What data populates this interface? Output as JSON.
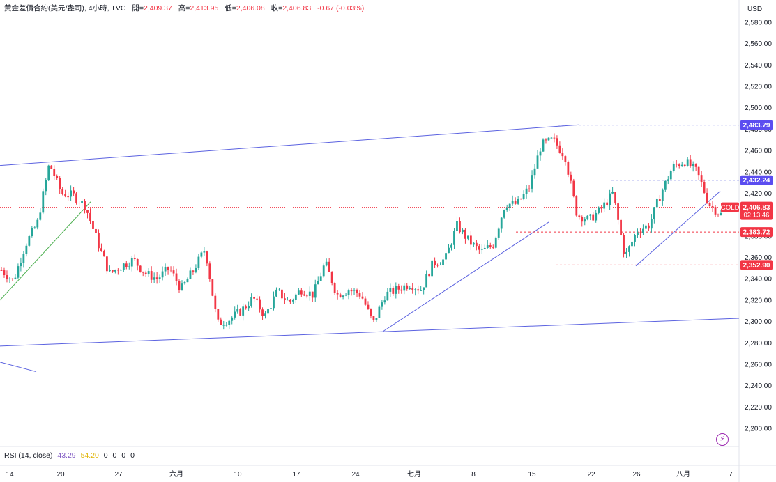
{
  "legend": {
    "title": "黃金差價合約(美元/盎司), 4小時, TVC",
    "open_label": "開=",
    "open_value": "2,409.37",
    "high_label": "高=",
    "high_value": "2,413.95",
    "low_label": "低=",
    "low_value": "2,406.08",
    "close_label": "收=",
    "close_value": "2,406.83",
    "change": "-0.67 (-0.03%)"
  },
  "currency": "USD",
  "rsi": {
    "label": "RSI (14, close)",
    "value1": "43.29",
    "value2": "54.20",
    "zeros": [
      "0",
      "0",
      "0",
      "0"
    ]
  },
  "colors": {
    "up": "#26a69a",
    "down": "#f23645",
    "trend": "#5b62e0",
    "green_trend": "#4caf50",
    "price_tag": "#f23645",
    "level_tag_blue": "#5b4df0"
  },
  "chart_data": {
    "type": "candlestick",
    "symbol": "GOLD",
    "ylim": [
      2190,
      2590
    ],
    "y_ticks": [
      2580,
      2560,
      2540,
      2520,
      2500,
      2480,
      2460,
      2440,
      2420,
      2400,
      2380,
      2360,
      2340,
      2320,
      2300,
      2280,
      2260,
      2240,
      2220,
      2200
    ],
    "y_tick_labels": [
      "2,580.00",
      "2,560.00",
      "2,540.00",
      "2,520.00",
      "2,500.00",
      "2,480.00",
      "2,460.00",
      "2,440.00",
      "2,420.00",
      "2,400.00",
      "2,380.00",
      "2,360.00",
      "2,340.00",
      "2,320.00",
      "2,300.00",
      "2,280.00",
      "2,260.00",
      "2,240.00",
      "2,220.00",
      "2,200.00"
    ],
    "x_tick_labels": [
      "14",
      "20",
      "27",
      "六月",
      "10",
      "17",
      "24",
      "七月",
      "8",
      "15",
      "22",
      "26",
      "八月",
      "7"
    ],
    "close_path": [
      [
        "14",
        2348
      ],
      [
        "16",
        2338
      ],
      [
        "18",
        2372
      ],
      [
        "19",
        2392
      ],
      [
        "20",
        2448
      ],
      [
        "21",
        2420
      ],
      [
        "22",
        2418
      ],
      [
        "23",
        2408
      ],
      [
        "24",
        2375
      ],
      [
        "27",
        2345
      ],
      [
        "28",
        2352
      ],
      [
        "29",
        2358
      ],
      [
        "30",
        2345
      ],
      [
        "31",
        2340
      ],
      [
        "六月",
        2350
      ],
      [
        "4",
        2330
      ],
      [
        "5",
        2348
      ],
      [
        "6",
        2368
      ],
      [
        "7",
        2298
      ],
      [
        "10",
        2302
      ],
      [
        "11",
        2310
      ],
      [
        "12",
        2322
      ],
      [
        "13",
        2305
      ],
      [
        "14b",
        2328
      ],
      [
        "17",
        2318
      ],
      [
        "18",
        2330
      ],
      [
        "19",
        2325
      ],
      [
        "20",
        2355
      ],
      [
        "21",
        2325
      ],
      [
        "24",
        2330
      ],
      [
        "25",
        2325
      ],
      [
        "26",
        2298
      ],
      [
        "27",
        2325
      ],
      [
        "28",
        2330
      ],
      [
        "七月",
        2335
      ],
      [
        "2",
        2330
      ],
      [
        "3",
        2355
      ],
      [
        "4",
        2358
      ],
      [
        "5",
        2390
      ],
      [
        "8",
        2375
      ],
      [
        "9",
        2365
      ],
      [
        "10",
        2372
      ],
      [
        "11",
        2410
      ],
      [
        "12",
        2410
      ],
      [
        "15",
        2425
      ],
      [
        "16",
        2465
      ],
      [
        "17",
        2470
      ],
      [
        "18",
        2455
      ],
      [
        "19",
        2400
      ],
      [
        "22",
        2395
      ],
      [
        "23",
        2405
      ],
      [
        "24",
        2420
      ],
      [
        "25",
        2360
      ],
      [
        "26",
        2385
      ],
      [
        "29",
        2390
      ],
      [
        "30",
        2420
      ],
      [
        "31",
        2445
      ],
      [
        "八月",
        2450
      ],
      [
        "2",
        2440
      ],
      [
        "5",
        2410
      ],
      [
        "6",
        2400
      ]
    ],
    "levels": [
      {
        "label": "2,483.79",
        "value": 2483.79,
        "style": "blue-dashed"
      },
      {
        "label": "2,432.24",
        "value": 2432.24,
        "style": "blue-dashed"
      },
      {
        "label": "2,406.83",
        "value": 2406.83,
        "style": "current"
      },
      {
        "label": "2,383.72",
        "value": 2383.72,
        "style": "red-dashed"
      },
      {
        "label": "2,352.90",
        "value": 2352.9,
        "style": "red-dashed"
      }
    ],
    "countdown": "02:13:46"
  }
}
